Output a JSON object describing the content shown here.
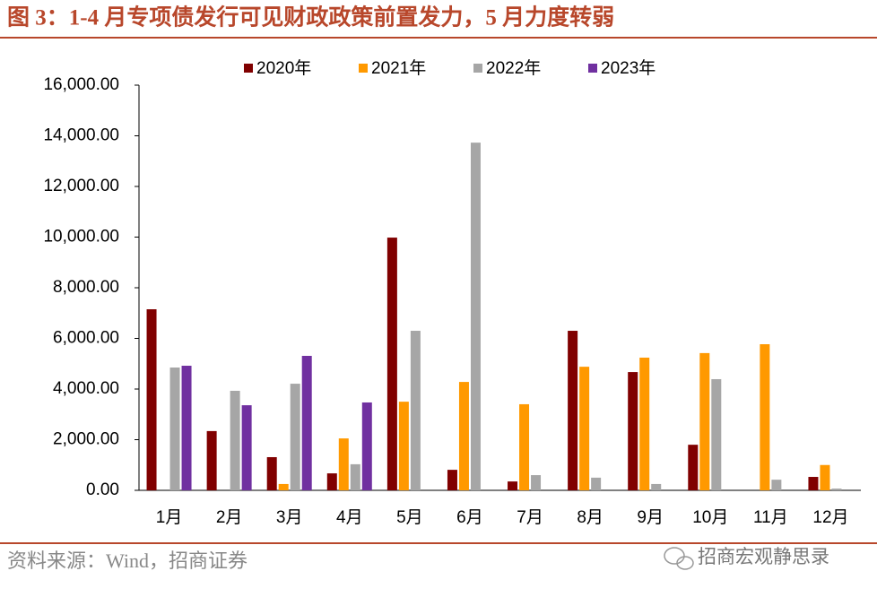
{
  "title": "图 3：1-4 月专项债发行可见财政政策前置发力，5 月力度转弱",
  "source": "资料来源：Wind，招商证券",
  "watermark": "招商宏观静思录",
  "chart_data": {
    "type": "bar",
    "categories": [
      "1月",
      "2月",
      "3月",
      "4月",
      "5月",
      "6月",
      "7月",
      "8月",
      "9月",
      "10月",
      "11月",
      "12月"
    ],
    "series": [
      {
        "name": "2020年",
        "color": "#800000",
        "values": [
          7150,
          2340,
          1310,
          670,
          9980,
          810,
          350,
          6300,
          4670,
          1800,
          null,
          530
        ]
      },
      {
        "name": "2021年",
        "color": "#ff9900",
        "values": [
          null,
          null,
          250,
          2050,
          3500,
          4280,
          3400,
          4880,
          5240,
          5420,
          5770,
          1000
        ]
      },
      {
        "name": "2022年",
        "color": "#a6a6a6",
        "values": [
          4850,
          3930,
          4210,
          1030,
          6300,
          13730,
          600,
          500,
          250,
          4390,
          420,
          70
        ]
      },
      {
        "name": "2023年",
        "color": "#7030a0",
        "values": [
          4920,
          3360,
          5310,
          3470,
          null,
          null,
          null,
          null,
          null,
          null,
          null,
          null
        ]
      }
    ],
    "ylim": [
      0,
      16000
    ],
    "yticks": [
      {
        "value": 0,
        "label": "0.00"
      },
      {
        "value": 2000,
        "label": "2,000.00"
      },
      {
        "value": 4000,
        "label": "4,000.00"
      },
      {
        "value": 6000,
        "label": "6,000.00"
      },
      {
        "value": 8000,
        "label": "8,000.00"
      },
      {
        "value": 10000,
        "label": "10,000.00"
      },
      {
        "value": 12000,
        "label": "12,000.00"
      },
      {
        "value": 14000,
        "label": "14,000.00"
      },
      {
        "value": 16000,
        "label": "16,000.00"
      }
    ],
    "grid": false
  }
}
